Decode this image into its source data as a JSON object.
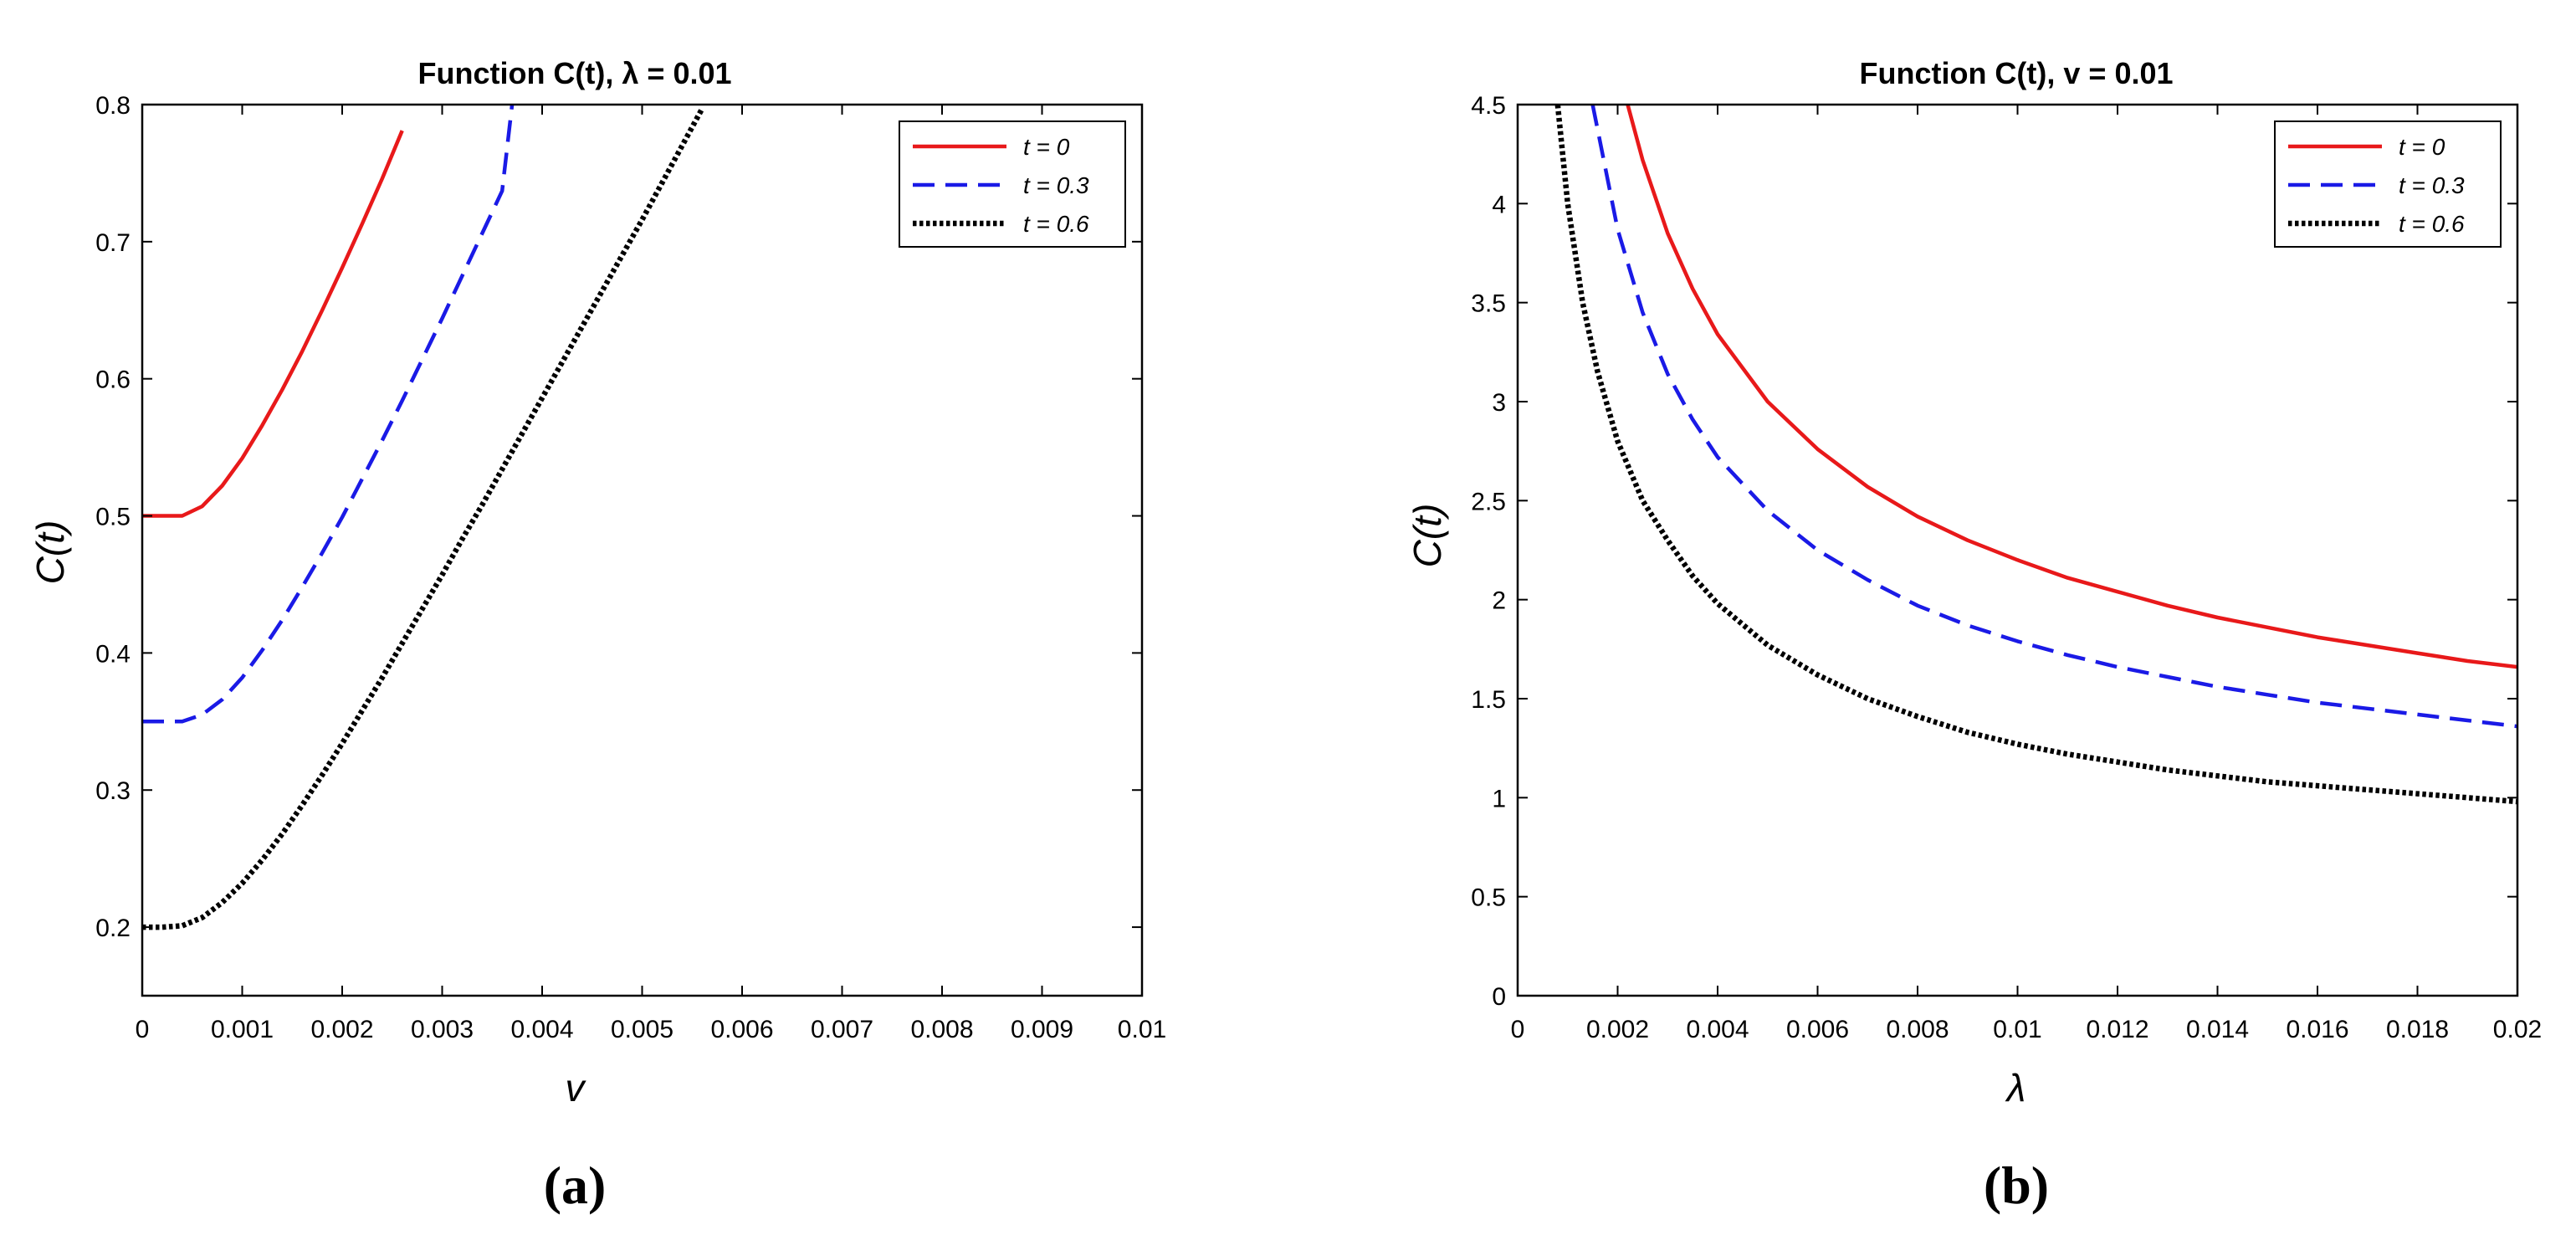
{
  "chart_data": [
    {
      "type": "line",
      "panel_label": "(a)",
      "title": "Function  C(t), λ = 0.01",
      "xlabel": "v",
      "ylabel": "C(t)",
      "xlim": [
        0,
        0.01
      ],
      "ylim": [
        0.15,
        0.8
      ],
      "x_ticks": [
        0,
        0.001,
        0.002,
        0.003,
        0.004,
        0.005,
        0.006,
        0.007,
        0.008,
        0.009,
        0.01
      ],
      "x_tick_labels": [
        "0",
        "0.001",
        "0.002",
        "0.003",
        "0.004",
        "0.005",
        "0.006",
        "0.007",
        "0.008",
        "0.009",
        "0.01"
      ],
      "y_ticks": [
        0.2,
        0.3,
        0.4,
        0.5,
        0.6,
        0.7,
        0.8
      ],
      "y_tick_labels": [
        "0.2",
        "0.3",
        "0.4",
        "0.5",
        "0.6",
        "0.7",
        "0.8"
      ],
      "grid": false,
      "legend_position": "top-right",
      "series": [
        {
          "name": "t = 0",
          "color": "#e8191a",
          "style": "solid",
          "x": [
            0,
            0.0002,
            0.0004,
            0.0006,
            0.0008,
            0.001,
            0.0012,
            0.0014,
            0.0016,
            0.0018,
            0.002,
            0.0022,
            0.0024,
            0.0026
          ],
          "y": [
            0.5,
            0.5,
            0.5,
            0.507,
            0.522,
            0.542,
            0.566,
            0.592,
            0.62,
            0.65,
            0.681,
            0.713,
            0.746,
            0.781
          ]
        },
        {
          "name": "t = 0.3",
          "color": "#1a1ae6",
          "style": "dashed",
          "x": [
            0,
            0.0002,
            0.0004,
            0.0006,
            0.0008,
            0.001,
            0.0012,
            0.0014,
            0.0016,
            0.0018,
            0.002,
            0.0022,
            0.0024,
            0.0026,
            0.0028,
            0.003,
            0.0032,
            0.0034,
            0.0036,
            0.0037
          ],
          "y": [
            0.35,
            0.35,
            0.35,
            0.355,
            0.366,
            0.382,
            0.402,
            0.424,
            0.448,
            0.473,
            0.499,
            0.527,
            0.555,
            0.584,
            0.614,
            0.644,
            0.675,
            0.706,
            0.737,
            0.8
          ]
        },
        {
          "name": "t = 0.6",
          "color": "#000000",
          "style": "dotted",
          "x": [
            0,
            0.0002,
            0.0004,
            0.0006,
            0.0008,
            0.001,
            0.0012,
            0.0014,
            0.0016,
            0.0018,
            0.002,
            0.0022,
            0.0024,
            0.0026,
            0.0028,
            0.003,
            0.0032,
            0.0034,
            0.0036,
            0.0038,
            0.004,
            0.0042,
            0.0044,
            0.0046,
            0.0048,
            0.005,
            0.0052,
            0.0054,
            0.0056
          ],
          "y": [
            0.2,
            0.2,
            0.201,
            0.207,
            0.218,
            0.232,
            0.249,
            0.268,
            0.289,
            0.311,
            0.334,
            0.358,
            0.382,
            0.407,
            0.432,
            0.457,
            0.483,
            0.508,
            0.534,
            0.56,
            0.586,
            0.612,
            0.638,
            0.664,
            0.69,
            0.716,
            0.743,
            0.77,
            0.797
          ]
        }
      ]
    },
    {
      "type": "line",
      "panel_label": "(b)",
      "title": "Function  C(t), v = 0.01",
      "xlabel": "λ",
      "ylabel": "C(t)",
      "xlim": [
        0,
        0.02
      ],
      "ylim": [
        0,
        4.5
      ],
      "x_ticks": [
        0,
        0.002,
        0.004,
        0.006,
        0.008,
        0.01,
        0.012,
        0.014,
        0.016,
        0.018,
        0.02
      ],
      "x_tick_labels": [
        "0",
        "0.002",
        "0.004",
        "0.006",
        "0.008",
        "0.01",
        "0.012",
        "0.014",
        "0.016",
        "0.018",
        "0.02"
      ],
      "y_ticks": [
        0,
        0.5,
        1,
        1.5,
        2,
        2.5,
        3,
        3.5,
        4,
        4.5
      ],
      "y_tick_labels": [
        "0",
        "0.5",
        "1",
        "1.5",
        "2",
        "2.5",
        "3",
        "3.5",
        "4",
        "4.5"
      ],
      "grid": false,
      "legend_position": "top-right",
      "series": [
        {
          "name": "t = 0",
          "color": "#e8191a",
          "style": "solid",
          "x": [
            0.0022,
            0.0025,
            0.003,
            0.0035,
            0.004,
            0.005,
            0.006,
            0.007,
            0.008,
            0.009,
            0.01,
            0.011,
            0.012,
            0.013,
            0.014,
            0.015,
            0.016,
            0.017,
            0.018,
            0.019,
            0.02
          ],
          "y": [
            4.5,
            4.22,
            3.85,
            3.57,
            3.34,
            3.0,
            2.76,
            2.57,
            2.42,
            2.3,
            2.2,
            2.11,
            2.04,
            1.97,
            1.91,
            1.86,
            1.81,
            1.77,
            1.73,
            1.69,
            1.66
          ]
        },
        {
          "name": "t = 0.3",
          "color": "#1a1ae6",
          "style": "dashed",
          "x": [
            0.0015,
            0.002,
            0.0025,
            0.003,
            0.0035,
            0.004,
            0.005,
            0.006,
            0.007,
            0.008,
            0.009,
            0.01,
            0.011,
            0.012,
            0.013,
            0.014,
            0.015,
            0.016,
            0.017,
            0.018,
            0.019,
            0.02
          ],
          "y": [
            4.5,
            3.87,
            3.45,
            3.14,
            2.91,
            2.72,
            2.45,
            2.25,
            2.1,
            1.97,
            1.87,
            1.79,
            1.72,
            1.66,
            1.61,
            1.56,
            1.52,
            1.48,
            1.45,
            1.42,
            1.39,
            1.36
          ]
        },
        {
          "name": "t = 0.6",
          "color": "#000000",
          "style": "dotted",
          "x": [
            0.0008,
            0.001,
            0.0013,
            0.0016,
            0.002,
            0.0025,
            0.003,
            0.0035,
            0.004,
            0.005,
            0.006,
            0.007,
            0.008,
            0.009,
            0.01,
            0.011,
            0.012,
            0.013,
            0.014,
            0.015,
            0.016,
            0.017,
            0.018,
            0.019,
            0.02
          ],
          "y": [
            4.5,
            4.0,
            3.5,
            3.15,
            2.8,
            2.5,
            2.3,
            2.12,
            1.98,
            1.77,
            1.62,
            1.5,
            1.41,
            1.33,
            1.27,
            1.22,
            1.18,
            1.14,
            1.11,
            1.08,
            1.06,
            1.04,
            1.02,
            1.0,
            0.98
          ]
        }
      ]
    }
  ]
}
